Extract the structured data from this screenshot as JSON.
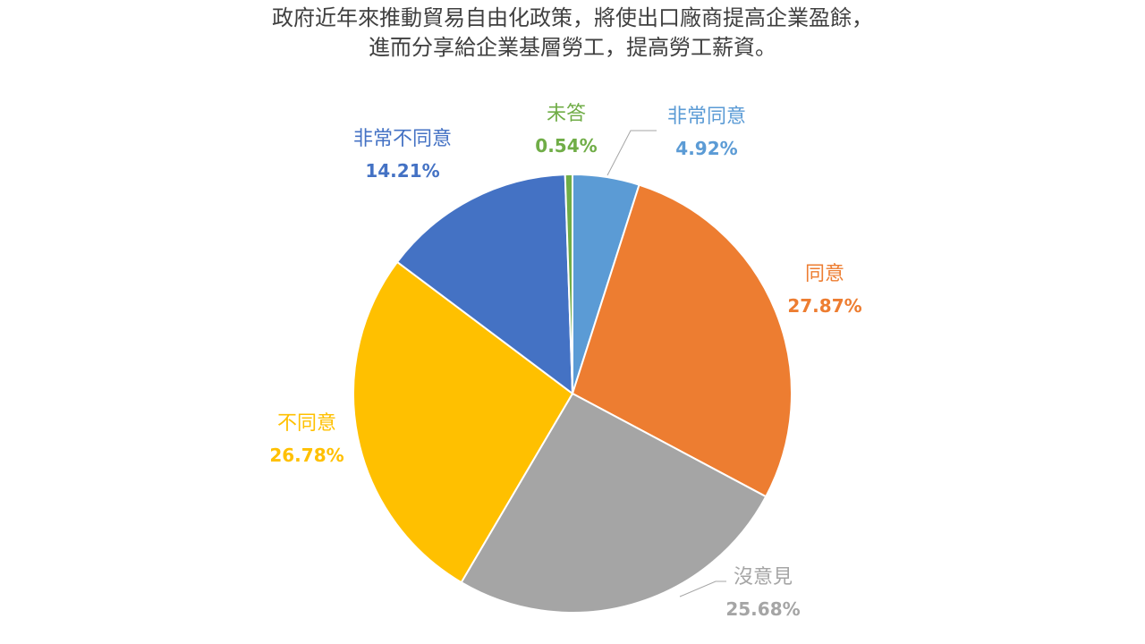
{
  "chart_data": {
    "type": "pie",
    "title_lines": [
      "政府近年來推動貿易自由化政策，將使出口廠商提高企業盈餘，",
      "進而分享給企業基層勞工，提高勞工薪資。"
    ],
    "start_direction": "top",
    "direction": "clockwise",
    "slices": [
      {
        "label": "非常同意",
        "value": 4.92,
        "value_text": "4.92%",
        "color": "#5B9BD5",
        "leader_line": true
      },
      {
        "label": "同意",
        "value": 27.87,
        "value_text": "27.87%",
        "color": "#ED7D31",
        "leader_line": false
      },
      {
        "label": "沒意見",
        "value": 25.68,
        "value_text": "25.68%",
        "color": "#A5A5A5",
        "leader_line": true
      },
      {
        "label": "不同意",
        "value": 26.78,
        "value_text": "26.78%",
        "color": "#FFC000",
        "leader_line": false
      },
      {
        "label": "非常不同意",
        "value": 14.21,
        "value_text": "14.21%",
        "color": "#4472C4",
        "leader_line": false
      },
      {
        "label": "未答",
        "value": 0.54,
        "value_text": "0.54%",
        "color": "#70AD47",
        "leader_line": false
      }
    ],
    "legend": "none"
  }
}
